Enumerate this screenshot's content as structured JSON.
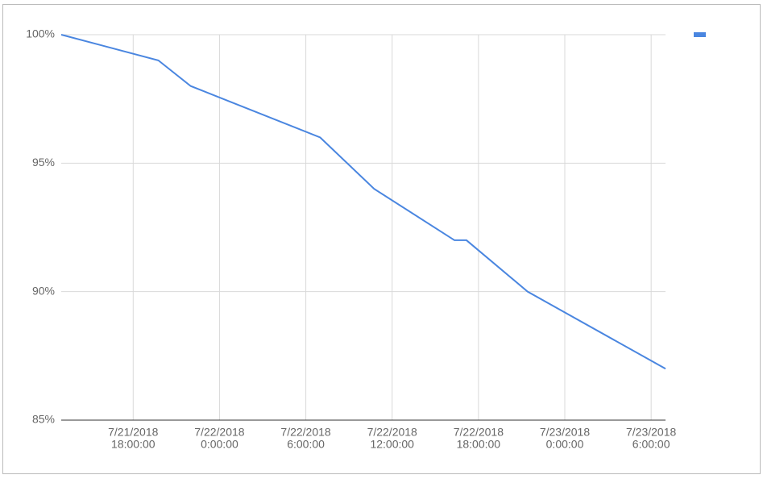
{
  "chart_data": {
    "type": "line",
    "x": [
      "2018-07-21T13:00",
      "2018-07-21T19:45",
      "2018-07-21T22:00",
      "2018-07-22T07:00",
      "2018-07-22T10:45",
      "2018-07-22T16:20",
      "2018-07-22T17:10",
      "2018-07-22T21:25",
      "2018-07-23T07:00"
    ],
    "series": [
      {
        "color": "#4a86e0",
        "values": [
          100,
          99,
          98,
          96,
          94,
          92,
          92,
          90,
          87
        ]
      }
    ],
    "xlim": [
      "2018-07-21T13:00",
      "2018-07-23T07:00"
    ],
    "xticks": [
      {
        "value": "2018-07-21T18:00",
        "label": [
          "7/21/2018",
          "18:00:00"
        ]
      },
      {
        "value": "2018-07-22T00:00",
        "label": [
          "7/22/2018",
          "0:00:00"
        ]
      },
      {
        "value": "2018-07-22T06:00",
        "label": [
          "7/22/2018",
          "6:00:00"
        ]
      },
      {
        "value": "2018-07-22T12:00",
        "label": [
          "7/22/2018",
          "12:00:00"
        ]
      },
      {
        "value": "2018-07-22T18:00",
        "label": [
          "7/22/2018",
          "18:00:00"
        ]
      },
      {
        "value": "2018-07-23T00:00",
        "label": [
          "7/23/2018",
          "0:00:00"
        ]
      },
      {
        "value": "2018-07-23T06:00",
        "label": [
          "7/23/2018",
          "6:00:00"
        ]
      }
    ],
    "ylim": [
      85,
      100
    ],
    "yticks": [
      {
        "value": 85,
        "label": "85%"
      },
      {
        "value": 90,
        "label": "90%"
      },
      {
        "value": 95,
        "label": "95%"
      },
      {
        "value": 100,
        "label": "100%"
      }
    ],
    "grid": true,
    "legend": "top-right"
  }
}
